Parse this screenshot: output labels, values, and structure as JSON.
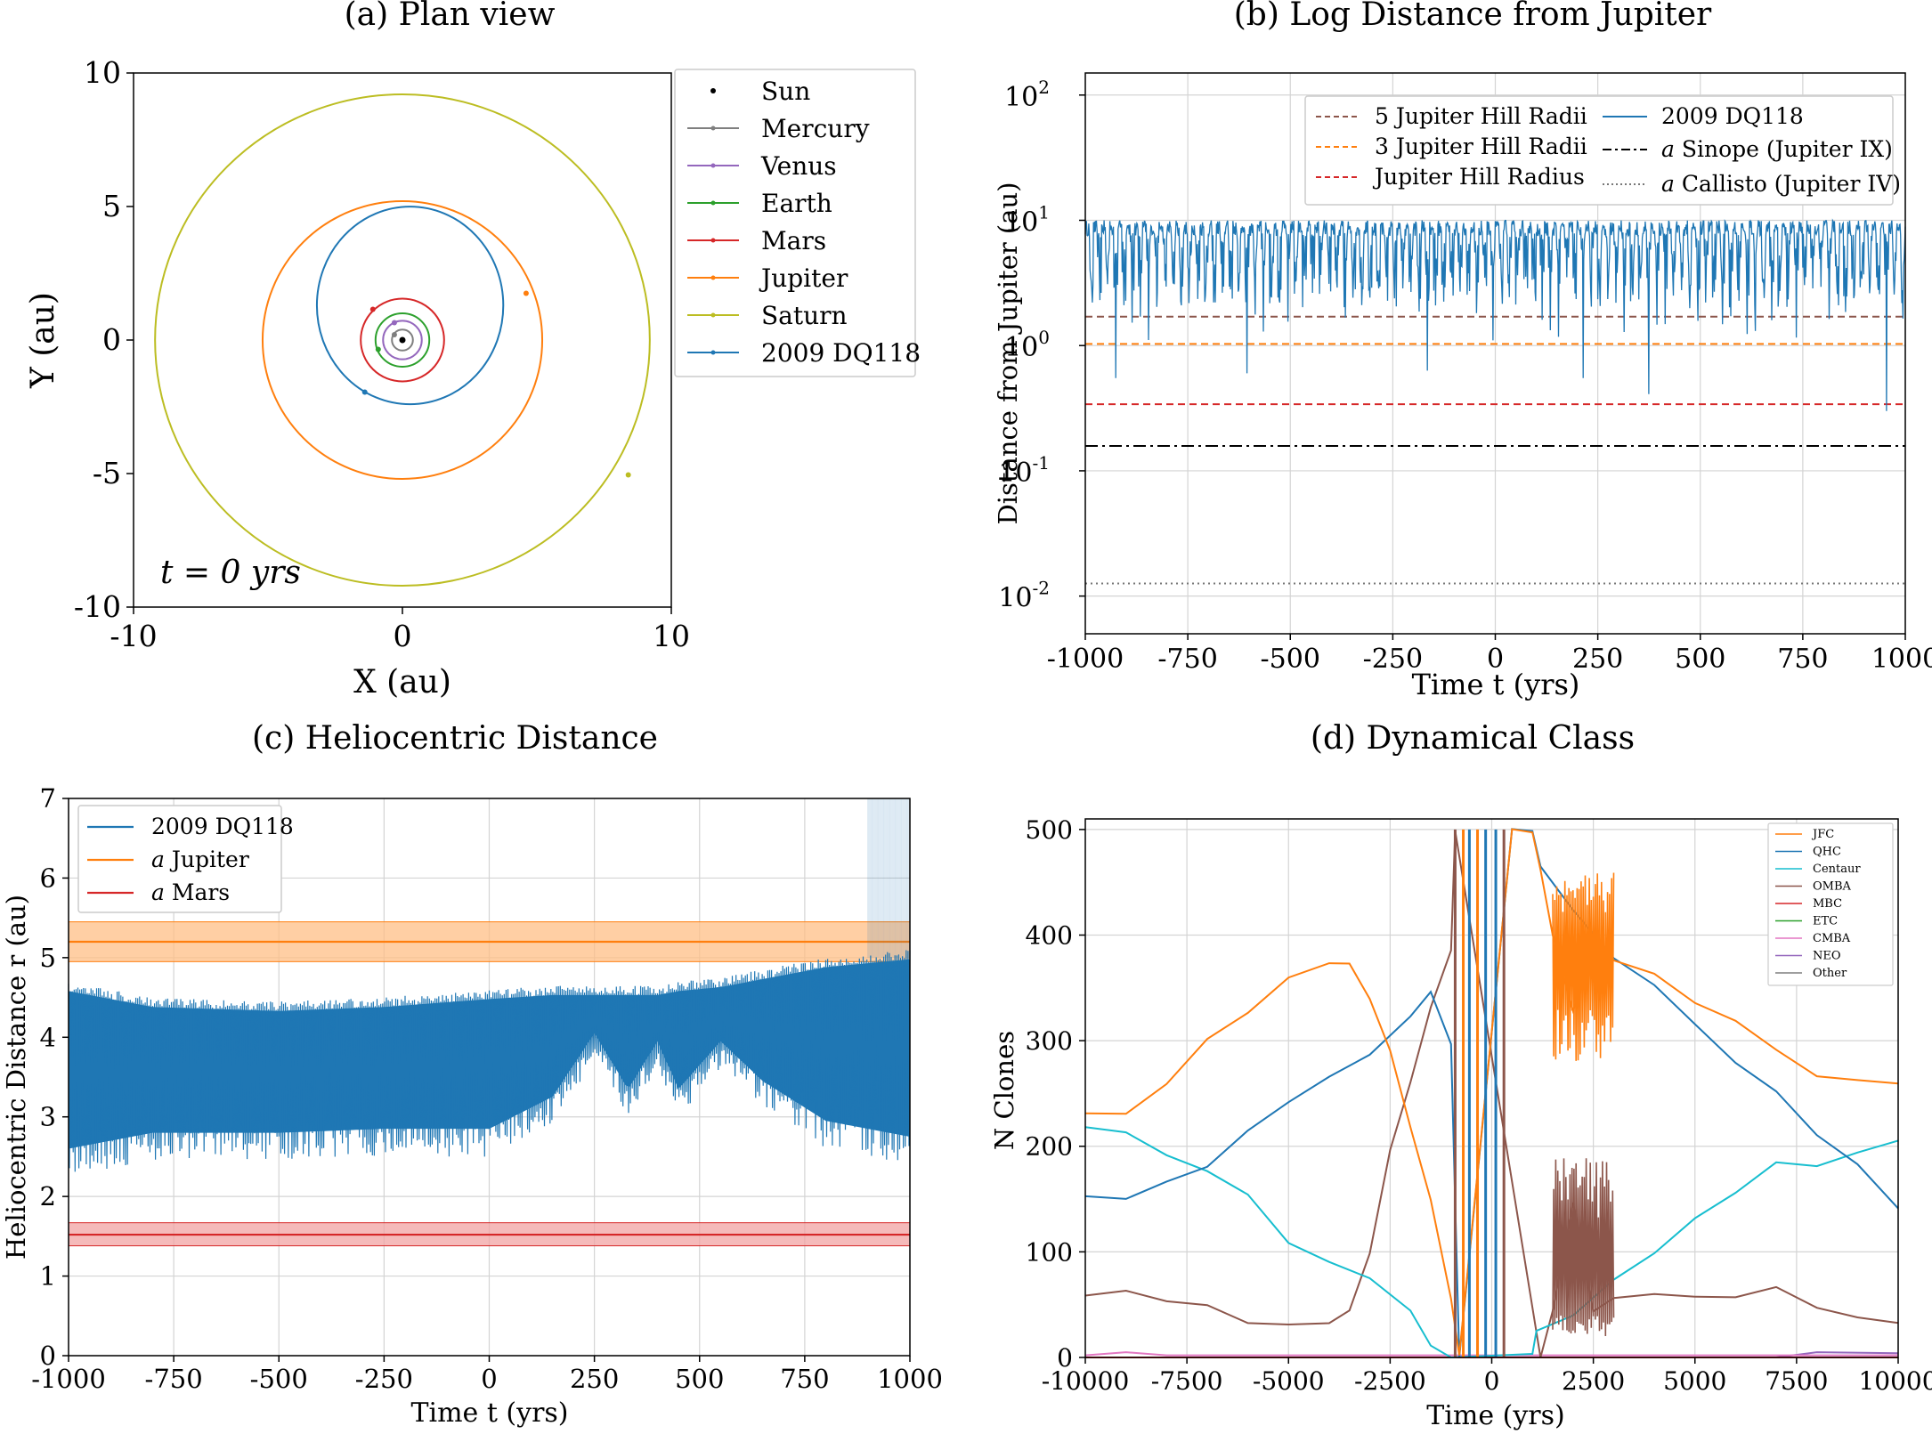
{
  "figure": {
    "panel_a_title": "(a) Plan view",
    "panel_b_title": "(b) Log Distance from Jupiter",
    "panel_c_title": "(c) Heliocentric Distance",
    "panel_d_title": "(d) Dynamical Class"
  },
  "colors": {
    "blue": "#1f77b4",
    "orange": "#ff7f0e",
    "green": "#2ca02c",
    "red": "#d62728",
    "purple": "#9467bd",
    "brown": "#8c564b",
    "pink": "#e377c2",
    "gray": "#7f7f7f",
    "olive": "#bcbd22",
    "cyan": "#17becf"
  },
  "chart_data": [
    {
      "id": "a",
      "type": "scatter",
      "title": "(a) Plan view",
      "xlabel": "X (au)",
      "ylabel": "Y (au)",
      "xlim": [
        -10,
        10
      ],
      "ylim": [
        -10,
        10
      ],
      "xticks": [
        -10,
        0,
        10
      ],
      "yticks": [
        10,
        5,
        0,
        -5,
        -10
      ],
      "time_label": "t = 0 yrs",
      "bodies": [
        {
          "name": "Sun",
          "a": 0,
          "e": 0,
          "pos": [
            0,
            0
          ]
        },
        {
          "name": "Mercury",
          "a": 0.39,
          "e": 0,
          "pos": [
            -0.3,
            0.2
          ]
        },
        {
          "name": "Venus",
          "a": 0.72,
          "e": 0,
          "pos": [
            -0.3,
            0.65
          ]
        },
        {
          "name": "Earth",
          "a": 1.0,
          "e": 0,
          "pos": [
            -0.9,
            -0.35
          ]
        },
        {
          "name": "Mars",
          "a": 1.55,
          "e": 0,
          "pos": [
            -1.1,
            1.15
          ]
        },
        {
          "name": "Jupiter",
          "a": 5.2,
          "e": 0,
          "pos": [
            4.6,
            1.75
          ]
        },
        {
          "name": "Saturn",
          "a": 9.2,
          "e": 0,
          "pos": [
            8.4,
            -5.05
          ]
        },
        {
          "name": "2009 DQ118",
          "a": 3.7,
          "e": 0.35,
          "pos": [
            -1.4,
            -1.95
          ]
        }
      ]
    },
    {
      "id": "b",
      "type": "line",
      "title": "(b) Log Distance from Jupiter",
      "xlabel": "Time t (yrs)",
      "ylabel": "Distance from Jupiter (au)",
      "yscale": "log",
      "xlim": [
        -1000,
        1000
      ],
      "ylim": [
        0.005,
        150
      ],
      "xticks": [
        "-1000",
        "-750",
        "-500",
        "-250",
        "0",
        "250",
        "500",
        "750",
        "1000"
      ],
      "yticks": [
        {
          "value": 100,
          "base": "10",
          "exp": "2"
        },
        {
          "value": 10,
          "base": "10",
          "exp": "1"
        },
        {
          "value": 1,
          "base": "10",
          "exp": "0"
        },
        {
          "value": 0.1,
          "base": "10",
          "exp": "-1"
        },
        {
          "value": 0.01,
          "base": "10",
          "exp": "-2"
        }
      ],
      "hlines": [
        {
          "name": "5 Jupiter Hill Radii",
          "value": 1.7
        },
        {
          "name": "3 Jupiter Hill Radii",
          "value": 1.03
        },
        {
          "name": "Jupiter Hill Radius",
          "value": 0.34
        },
        {
          "name": "a Sinope (Jupiter IX)",
          "value": 0.158
        },
        {
          "name": "a Callisto (Jupiter IV)",
          "value": 0.0126
        }
      ],
      "series": [
        {
          "name": "2009 DQ118",
          "range_min": 0.4,
          "range_max": 10,
          "typical_min": 1.1,
          "notable_minima": [
            {
              "t": -920,
              "d": 0.55
            },
            {
              "t": -600,
              "d": 0.6
            },
            {
              "t": -170,
              "d": 0.63
            },
            {
              "t": 210,
              "d": 0.55
            },
            {
              "t": 370,
              "d": 0.41
            },
            {
              "t": 950,
              "d": 0.3
            }
          ]
        }
      ],
      "legend": [
        {
          "label": "5 Jupiter Hill Radii"
        },
        {
          "label": "3 Jupiter Hill Radii"
        },
        {
          "label": "Jupiter Hill Radius"
        },
        {
          "label": "2009 DQ118"
        },
        {
          "prefix": "a",
          "label": " Sinope (Jupiter IX)"
        },
        {
          "prefix": "a",
          "label": " Callisto (Jupiter IV)"
        }
      ]
    },
    {
      "id": "c",
      "type": "line",
      "title": "(c) Heliocentric Distance",
      "xlabel": "Time t (yrs)",
      "ylabel": "Heliocentric Distance r (au)",
      "xlim": [
        -1000,
        1000
      ],
      "ylim": [
        0,
        7
      ],
      "xticks": [
        "-1000",
        "-750",
        "-500",
        "-250",
        "0",
        "250",
        "500",
        "750",
        "1000"
      ],
      "yticks": [
        "0",
        "1",
        "2",
        "3",
        "4",
        "5",
        "6",
        "7"
      ],
      "bands": [
        {
          "name": "a Jupiter",
          "value": 5.2,
          "lo": 4.95,
          "hi": 5.45
        },
        {
          "name": "a Mars",
          "value": 1.52,
          "lo": 1.38,
          "hi": 1.67
        }
      ],
      "series": [
        {
          "name": "2009 DQ118",
          "envelope": [
            {
              "t": -1000,
              "min": 2.25,
              "max": 4.7
            },
            {
              "t": -800,
              "min": 2.45,
              "max": 4.5
            },
            {
              "t": -500,
              "min": 2.45,
              "max": 4.45
            },
            {
              "t": -250,
              "min": 2.5,
              "max": 4.5
            },
            {
              "t": 0,
              "min": 2.5,
              "max": 4.6
            },
            {
              "t": 150,
              "min": 2.9,
              "max": 4.65
            },
            {
              "t": 250,
              "min": 3.7,
              "max": 4.65
            },
            {
              "t": 330,
              "min": 3.0,
              "max": 4.65
            },
            {
              "t": 400,
              "min": 3.6,
              "max": 4.65
            },
            {
              "t": 450,
              "min": 3.0,
              "max": 4.7
            },
            {
              "t": 550,
              "min": 3.6,
              "max": 4.75
            },
            {
              "t": 650,
              "min": 3.1,
              "max": 4.85
            },
            {
              "t": 800,
              "min": 2.6,
              "max": 5.0
            },
            {
              "t": 1000,
              "min": 2.4,
              "max": 5.1
            }
          ]
        }
      ],
      "legend": [
        {
          "label": "2009 DQ118"
        },
        {
          "prefix": "a",
          "label": " Jupiter"
        },
        {
          "prefix": "a",
          "label": " Mars"
        }
      ]
    },
    {
      "id": "d",
      "type": "line",
      "title": "(d) Dynamical Class",
      "xlabel": "Time (yrs)",
      "ylabel": "N Clones",
      "xlim": [
        -10000,
        10000
      ],
      "ylim": [
        0,
        510
      ],
      "xticks": [
        "-10000",
        "-7500",
        "-5000",
        "-2500",
        "0",
        "2500",
        "5000",
        "7500",
        "10000"
      ],
      "yticks": [
        "0",
        "100",
        "200",
        "300",
        "400",
        "500"
      ],
      "series": [
        {
          "name": "JFC",
          "points": [
            [
              -10000,
              228
            ],
            [
              -9000,
              230
            ],
            [
              -8000,
              260
            ],
            [
              -7000,
              300
            ],
            [
              -6000,
              330
            ],
            [
              -5000,
              355
            ],
            [
              -4000,
              375
            ],
            [
              -3500,
              370
            ],
            [
              -3000,
              335
            ],
            [
              -2500,
              290
            ],
            [
              -2000,
              220
            ],
            [
              -1500,
              150
            ],
            [
              -1000,
              60
            ],
            [
              -800,
              0
            ],
            [
              500,
              500
            ],
            [
              1000,
              500
            ],
            [
              1200,
              460
            ],
            [
              1500,
              400
            ],
            [
              2000,
              330
            ],
            [
              2500,
              380
            ],
            [
              3000,
              380
            ],
            [
              4000,
              360
            ],
            [
              5000,
              340
            ],
            [
              6000,
              320
            ],
            [
              7000,
              290
            ],
            [
              8000,
              270
            ],
            [
              9000,
              260
            ],
            [
              10000,
              255
            ]
          ]
        },
        {
          "name": "QHC",
          "points": [
            [
              -10000,
              150
            ],
            [
              -9000,
              155
            ],
            [
              -8000,
              165
            ],
            [
              -7000,
              185
            ],
            [
              -6000,
              210
            ],
            [
              -5000,
              245
            ],
            [
              -4000,
              265
            ],
            [
              -3000,
              290
            ],
            [
              -2000,
              320
            ],
            [
              -1500,
              345
            ],
            [
              -1000,
              300
            ],
            [
              -800,
              0
            ],
            [
              500,
              500
            ],
            [
              1000,
              500
            ],
            [
              1200,
              460
            ],
            [
              2000,
              420
            ],
            [
              3000,
              380
            ],
            [
              4000,
              350
            ],
            [
              5000,
              320
            ],
            [
              6000,
              280
            ],
            [
              7000,
              250
            ],
            [
              8000,
              210
            ],
            [
              9000,
              180
            ],
            [
              10000,
              140
            ]
          ]
        },
        {
          "name": "Centaur",
          "points": [
            [
              -10000,
              220
            ],
            [
              -9000,
              210
            ],
            [
              -8000,
              195
            ],
            [
              -7000,
              175
            ],
            [
              -6000,
              150
            ],
            [
              -5000,
              110
            ],
            [
              -4000,
              90
            ],
            [
              -3000,
              75
            ],
            [
              -2000,
              40
            ],
            [
              -1500,
              15
            ],
            [
              -1000,
              0
            ],
            [
              1000,
              0
            ],
            [
              1100,
              25
            ],
            [
              2000,
              40
            ],
            [
              3000,
              70
            ],
            [
              4000,
              100
            ],
            [
              5000,
              135
            ],
            [
              6000,
              160
            ],
            [
              7000,
              180
            ],
            [
              8000,
              185
            ],
            [
              9000,
              195
            ],
            [
              10000,
              210
            ]
          ]
        },
        {
          "name": "OMBA",
          "points": [
            [
              -10000,
              55
            ],
            [
              -9000,
              65
            ],
            [
              -8000,
              55
            ],
            [
              -7000,
              45
            ],
            [
              -6000,
              35
            ],
            [
              -5000,
              30
            ],
            [
              -4000,
              35
            ],
            [
              -3500,
              45
            ],
            [
              -3000,
              100
            ],
            [
              -2500,
              200
            ],
            [
              -2000,
              260
            ],
            [
              -1500,
              330
            ],
            [
              -1000,
              390
            ],
            [
              -900,
              500
            ],
            [
              1200,
              0
            ],
            [
              1500,
              40
            ],
            [
              2000,
              150
            ],
            [
              2500,
              40
            ],
            [
              3000,
              60
            ],
            [
              4000,
              65
            ],
            [
              5000,
              60
            ],
            [
              6000,
              55
            ],
            [
              7000,
              70
            ],
            [
              8000,
              50
            ],
            [
              9000,
              40
            ],
            [
              10000,
              30
            ]
          ]
        },
        {
          "name": "MBC",
          "points": [
            [
              -10000,
              0
            ],
            [
              10000,
              0
            ]
          ]
        },
        {
          "name": "ETC",
          "points": [
            [
              -10000,
              0
            ],
            [
              10000,
              0
            ]
          ]
        },
        {
          "name": "CMBA",
          "points": [
            [
              -10000,
              2
            ],
            [
              -9000,
              5
            ],
            [
              -8000,
              2
            ],
            [
              10000,
              2
            ]
          ]
        },
        {
          "name": "NEO",
          "points": [
            [
              -10000,
              0
            ],
            [
              7000,
              0
            ],
            [
              8000,
              5
            ],
            [
              10000,
              4
            ]
          ]
        },
        {
          "name": "Other",
          "points": [
            [
              -10000,
              0
            ],
            [
              10000,
              0
            ]
          ]
        }
      ],
      "legend": [
        "JFC",
        "QHC",
        "Centaur",
        "OMBA",
        "MBC",
        "ETC",
        "CMBA",
        "NEO",
        "Other"
      ]
    }
  ]
}
